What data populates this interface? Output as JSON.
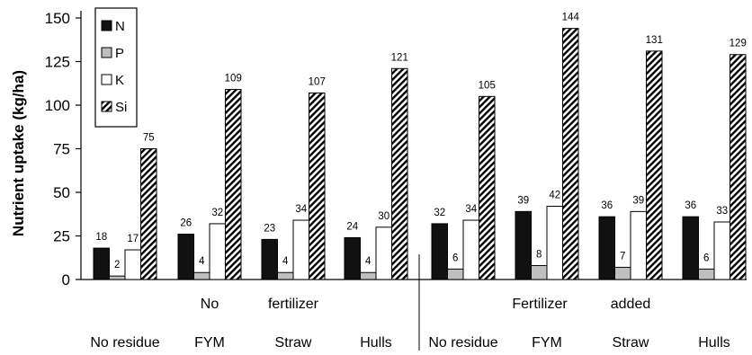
{
  "chart_data": {
    "type": "bar",
    "ylabel": "Nutrient uptake (kg/ha)",
    "ylim": [
      0,
      150
    ],
    "yticks": [
      "0",
      "25",
      "50",
      "75",
      "100",
      "125",
      "150"
    ],
    "categories": [
      "No residue",
      "FYM",
      "Straw",
      "Hulls",
      "No residue",
      "FYM",
      "Straw",
      "Hulls"
    ],
    "group_labels": [
      {
        "words": [
          "No",
          "fertilizer"
        ]
      },
      {
        "words": [
          "Fertilizer",
          "added"
        ]
      }
    ],
    "legend_position": "top-left",
    "series": [
      {
        "name": "N",
        "color": "#111111",
        "pattern": "solid-black",
        "values": [
          18,
          26,
          23,
          24,
          32,
          39,
          36,
          36
        ]
      },
      {
        "name": "P",
        "color": "#bfbfbf",
        "pattern": "solid-gray",
        "values": [
          2,
          4,
          4,
          4,
          6,
          8,
          7,
          6
        ]
      },
      {
        "name": "K",
        "color": "#ffffff",
        "pattern": "solid-white",
        "values": [
          17,
          32,
          34,
          30,
          34,
          42,
          39,
          33
        ]
      },
      {
        "name": "Si",
        "color": "#000000",
        "pattern": "diagonal-hatch",
        "values": [
          75,
          109,
          107,
          121,
          105,
          144,
          131,
          129
        ]
      }
    ],
    "data_labels": [
      [
        "18",
        "26",
        "23",
        "24",
        "32",
        "39",
        "36",
        "36"
      ],
      [
        "2",
        "4",
        "4",
        "4",
        "6",
        "8",
        "7",
        "6"
      ],
      [
        "17",
        "32",
        "34",
        "30",
        "34",
        "42",
        "39",
        "33"
      ],
      [
        "75",
        "109",
        "107",
        "121",
        "105",
        "144",
        "131",
        "129"
      ]
    ],
    "grid": false
  }
}
